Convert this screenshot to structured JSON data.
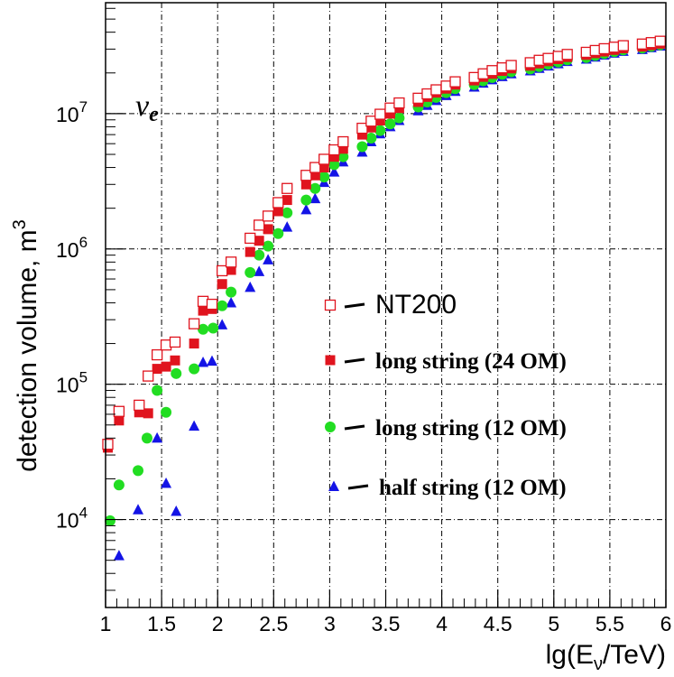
{
  "chart_data": {
    "type": "scatter",
    "xlabel": "lg(E",
    "xlabel_sub": "ν",
    "xlabel_rest": "/TeV)",
    "ylabel": "detection volume, m",
    "ylabel_sup": "3",
    "annotation": "ν",
    "annotation_sub": "e",
    "xlim": [
      1,
      6
    ],
    "ylim_log10": [
      3.35,
      7.82
    ],
    "yscale": "log",
    "grid": true,
    "legend_placement": "center-right",
    "x_ticks": [
      "1",
      "1.5",
      "2",
      "2.5",
      "3",
      "3.5",
      "4",
      "4.5",
      "5",
      "5.5",
      "6"
    ],
    "y_tick_base": "10",
    "y_tick_exponents": [
      "4",
      "5",
      "6",
      "7"
    ],
    "series": [
      {
        "name": "NT200",
        "marker": "open-square",
        "color": "#e0141e",
        "points": [
          [
            1.02,
            36000.0
          ],
          [
            1.12,
            63000.0
          ],
          [
            1.3,
            70000.0
          ],
          [
            1.38,
            115000.0
          ],
          [
            1.46,
            165000.0
          ],
          [
            1.54,
            195000.0
          ],
          [
            1.62,
            205000.0
          ],
          [
            1.79,
            280000.0
          ],
          [
            1.87,
            410000.0
          ],
          [
            1.95,
            390000.0
          ],
          [
            2.04,
            690000.0
          ],
          [
            2.12,
            800000.0
          ],
          [
            2.29,
            1200000.0
          ],
          [
            2.37,
            1500000.0
          ],
          [
            2.45,
            1750000.0
          ],
          [
            2.54,
            2200000.0
          ],
          [
            2.62,
            2800000.0
          ],
          [
            2.79,
            3500000.0
          ],
          [
            2.87,
            4000000.0
          ],
          [
            2.95,
            4600000.0
          ],
          [
            3.04,
            5400000.0
          ],
          [
            3.12,
            6200000.0
          ],
          [
            3.29,
            7800000.0
          ],
          [
            3.37,
            8800000.0
          ],
          [
            3.45,
            9900000.0
          ],
          [
            3.54,
            11000000.0
          ],
          [
            3.62,
            12000000.0
          ],
          [
            3.79,
            13000000.0
          ],
          [
            3.87,
            14000000.0
          ],
          [
            3.95,
            15000000.0
          ],
          [
            4.04,
            16000000.0
          ],
          [
            4.12,
            17200000.0
          ],
          [
            4.29,
            18500000.0
          ],
          [
            4.37,
            19700000.0
          ],
          [
            4.45,
            20800000.0
          ],
          [
            4.54,
            21800000.0
          ],
          [
            4.62,
            22700000.0
          ],
          [
            4.79,
            23800000.0
          ],
          [
            4.87,
            24800000.0
          ],
          [
            4.95,
            25600000.0
          ],
          [
            5.04,
            26500000.0
          ],
          [
            5.12,
            27400000.0
          ],
          [
            5.29,
            28400000.0
          ],
          [
            5.37,
            29300000.0
          ],
          [
            5.45,
            30200000.0
          ],
          [
            5.54,
            31000000.0
          ],
          [
            5.62,
            31800000.0
          ],
          [
            5.79,
            32700000.0
          ],
          [
            5.87,
            33500000.0
          ],
          [
            5.95,
            34300000.0
          ]
        ]
      },
      {
        "name": "long string (24 OM)",
        "marker": "filled-square",
        "color": "#e0141e",
        "points": [
          [
            1.02,
            34000.0
          ],
          [
            1.12,
            54000.0
          ],
          [
            1.3,
            62000.0
          ],
          [
            1.38,
            61000.0
          ],
          [
            1.46,
            130000.0
          ],
          [
            1.54,
            135000.0
          ],
          [
            1.62,
            150000.0
          ],
          [
            1.79,
            200000.0
          ],
          [
            1.87,
            350000.0
          ],
          [
            1.95,
            360000.0
          ],
          [
            2.04,
            550000.0
          ],
          [
            2.12,
            700000.0
          ],
          [
            2.29,
            950000.0
          ],
          [
            2.37,
            1150000.0
          ],
          [
            2.45,
            1400000.0
          ],
          [
            2.54,
            1900000.0
          ],
          [
            2.62,
            2300000.0
          ],
          [
            2.79,
            3000000.0
          ],
          [
            2.87,
            3500000.0
          ],
          [
            2.95,
            4000000.0
          ],
          [
            3.04,
            4800000.0
          ],
          [
            3.12,
            5500000.0
          ],
          [
            3.29,
            7000000.0
          ],
          [
            3.37,
            7900000.0
          ],
          [
            3.45,
            8900000.0
          ],
          [
            3.54,
            10000000.0
          ],
          [
            3.62,
            11000000.0
          ],
          [
            3.79,
            12200000.0
          ],
          [
            3.87,
            13300000.0
          ],
          [
            3.95,
            14300000.0
          ],
          [
            4.04,
            15300000.0
          ],
          [
            4.12,
            16400000.0
          ],
          [
            4.29,
            17600000.0
          ],
          [
            4.37,
            18700000.0
          ],
          [
            4.45,
            19700000.0
          ],
          [
            4.54,
            20700000.0
          ],
          [
            4.62,
            21600000.0
          ],
          [
            4.79,
            22600000.0
          ],
          [
            4.87,
            23500000.0
          ],
          [
            4.95,
            24400000.0
          ],
          [
            5.04,
            25300000.0
          ],
          [
            5.12,
            26200000.0
          ],
          [
            5.29,
            27200000.0
          ],
          [
            5.37,
            28000000.0
          ],
          [
            5.45,
            28800000.0
          ],
          [
            5.54,
            29600000.0
          ],
          [
            5.62,
            30400000.0
          ],
          [
            5.79,
            31300000.0
          ],
          [
            5.87,
            32100000.0
          ],
          [
            5.95,
            32900000.0
          ]
        ]
      },
      {
        "name": "long string (12 OM)",
        "marker": "filled-circle",
        "color": "#22dd22",
        "points": [
          [
            1.04,
            9800.0
          ],
          [
            1.12,
            18000.0
          ],
          [
            1.29,
            23000.0
          ],
          [
            1.37,
            40000.0
          ],
          [
            1.46,
            90000.0
          ],
          [
            1.54,
            62000.0
          ],
          [
            1.63,
            120000.0
          ],
          [
            1.79,
            130000.0
          ],
          [
            1.87,
            255000.0
          ],
          [
            1.96,
            260000.0
          ],
          [
            2.04,
            380000.0
          ],
          [
            2.12,
            480000.0
          ],
          [
            2.29,
            670000.0
          ],
          [
            2.37,
            900000.0
          ],
          [
            2.45,
            1050000.0
          ],
          [
            2.54,
            1300000.0
          ],
          [
            2.62,
            1850000.0
          ],
          [
            2.79,
            2300000.0
          ],
          [
            2.87,
            2800000.0
          ],
          [
            2.95,
            3400000.0
          ],
          [
            3.04,
            4200000.0
          ],
          [
            3.12,
            4800000.0
          ],
          [
            3.29,
            5700000.0
          ],
          [
            3.37,
            6600000.0
          ],
          [
            3.45,
            7500000.0
          ],
          [
            3.54,
            8400000.0
          ],
          [
            3.62,
            9300000.0
          ],
          [
            3.79,
            11200000.0
          ],
          [
            3.87,
            12200000.0
          ],
          [
            3.95,
            13200000.0
          ],
          [
            4.04,
            14300000.0
          ],
          [
            4.12,
            15300000.0
          ],
          [
            4.29,
            16400000.0
          ],
          [
            4.37,
            17500000.0
          ],
          [
            4.45,
            18500000.0
          ],
          [
            4.54,
            19500000.0
          ],
          [
            4.62,
            20400000.0
          ],
          [
            4.79,
            21400000.0
          ],
          [
            4.87,
            22300000.0
          ],
          [
            4.95,
            23200000.0
          ],
          [
            5.04,
            24100000.0
          ],
          [
            5.12,
            25000000.0
          ],
          [
            5.29,
            26000000.0
          ],
          [
            5.37,
            26900000.0
          ],
          [
            5.45,
            27800000.0
          ],
          [
            5.54,
            28700000.0
          ],
          [
            5.62,
            29600000.0
          ],
          [
            5.79,
            30500000.0
          ],
          [
            5.87,
            31400000.0
          ],
          [
            5.95,
            32300000.0
          ]
        ]
      },
      {
        "name": "half string (12 OM)",
        "marker": "filled-triangle",
        "color": "#1414e6",
        "points": [
          [
            1.12,
            5400.0
          ],
          [
            1.29,
            11800.0
          ],
          [
            1.46,
            40000.0
          ],
          [
            1.54,
            18500.0
          ],
          [
            1.63,
            11500.0
          ],
          [
            1.79,
            49000.0
          ],
          [
            1.87,
            145000.0
          ],
          [
            1.95,
            148000.0
          ],
          [
            2.04,
            275000.0
          ],
          [
            2.12,
            400000.0
          ],
          [
            2.29,
            520000.0
          ],
          [
            2.37,
            680000.0
          ],
          [
            2.45,
            830000.0
          ],
          [
            2.62,
            1450000.0
          ],
          [
            2.79,
            1950000.0
          ],
          [
            2.87,
            2350000.0
          ],
          [
            2.95,
            3100000.0
          ],
          [
            3.04,
            3700000.0
          ],
          [
            3.12,
            4400000.0
          ],
          [
            3.29,
            5200000.0
          ],
          [
            3.37,
            6200000.0
          ],
          [
            3.45,
            7100000.0
          ],
          [
            3.54,
            8000000.0
          ],
          [
            3.62,
            8900000.0
          ],
          [
            3.79,
            10500000.0
          ],
          [
            3.87,
            11500000.0
          ],
          [
            3.95,
            12500000.0
          ],
          [
            4.04,
            13600000.0
          ],
          [
            4.12,
            14600000.0
          ],
          [
            4.29,
            15700000.0
          ],
          [
            4.37,
            16800000.0
          ],
          [
            4.45,
            17800000.0
          ],
          [
            4.54,
            18800000.0
          ],
          [
            4.62,
            19700000.0
          ],
          [
            4.79,
            20700000.0
          ],
          [
            4.87,
            21600000.0
          ],
          [
            4.95,
            22500000.0
          ],
          [
            5.04,
            23400000.0
          ],
          [
            5.12,
            24300000.0
          ],
          [
            5.29,
            25300000.0
          ],
          [
            5.37,
            26200000.0
          ],
          [
            5.45,
            27100000.0
          ],
          [
            5.54,
            28000000.0
          ],
          [
            5.62,
            28900000.0
          ],
          [
            5.79,
            29800000.0
          ],
          [
            5.87,
            30700000.0
          ],
          [
            5.95,
            31600000.0
          ]
        ]
      }
    ]
  }
}
